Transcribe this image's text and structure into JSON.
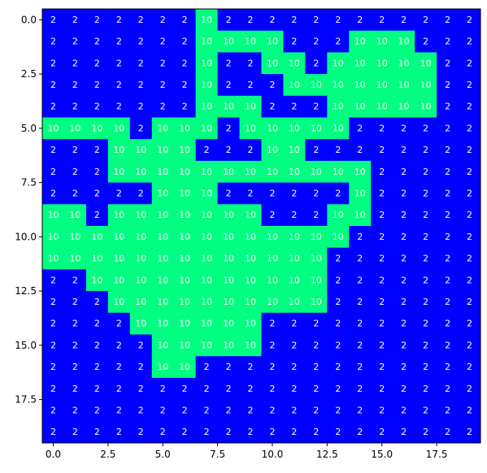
{
  "chart_data": {
    "type": "heatmap",
    "title": "",
    "xlabel": "",
    "ylabel": "",
    "xlim": [
      -0.5,
      19.5
    ],
    "ylim": [
      19.5,
      -0.5
    ],
    "x_ticks": [
      0.0,
      2.5,
      5.0,
      7.5,
      10.0,
      12.5,
      15.0,
      17.5
    ],
    "x_tick_labels": [
      "0.0",
      "2.5",
      "5.0",
      "7.5",
      "10.0",
      "12.5",
      "15.0",
      "17.5"
    ],
    "y_ticks": [
      0.0,
      2.5,
      5.0,
      7.5,
      10.0,
      12.5,
      15.0,
      17.5
    ],
    "y_tick_labels": [
      "0.0",
      "2.5",
      "5.0",
      "7.5",
      "10.0",
      "12.5",
      "15.0",
      "17.5"
    ],
    "grid": false,
    "colors": {
      "2": "#0000ff",
      "10": "#00ff80"
    },
    "annotation_color": "#ffffff",
    "values": [
      [
        2,
        2,
        2,
        2,
        2,
        2,
        2,
        10,
        2,
        2,
        2,
        2,
        2,
        2,
        2,
        2,
        2,
        2,
        2,
        2
      ],
      [
        2,
        2,
        2,
        2,
        2,
        2,
        2,
        10,
        10,
        10,
        10,
        2,
        2,
        2,
        10,
        10,
        10,
        2,
        2,
        2
      ],
      [
        2,
        2,
        2,
        2,
        2,
        2,
        2,
        10,
        2,
        2,
        10,
        10,
        2,
        10,
        10,
        10,
        10,
        10,
        2,
        2
      ],
      [
        2,
        2,
        2,
        2,
        2,
        2,
        2,
        10,
        2,
        2,
        2,
        10,
        10,
        10,
        10,
        10,
        10,
        10,
        2,
        2
      ],
      [
        2,
        2,
        2,
        2,
        2,
        2,
        2,
        10,
        10,
        10,
        2,
        2,
        2,
        10,
        10,
        10,
        10,
        10,
        2,
        2
      ],
      [
        10,
        10,
        10,
        10,
        2,
        10,
        10,
        10,
        2,
        10,
        10,
        10,
        10,
        10,
        2,
        2,
        2,
        2,
        2,
        2
      ],
      [
        2,
        2,
        2,
        10,
        10,
        10,
        10,
        2,
        2,
        2,
        10,
        10,
        2,
        2,
        2,
        2,
        2,
        2,
        2,
        2
      ],
      [
        2,
        2,
        2,
        10,
        10,
        10,
        10,
        10,
        10,
        10,
        10,
        10,
        10,
        10,
        10,
        2,
        2,
        2,
        2,
        2
      ],
      [
        2,
        2,
        2,
        2,
        2,
        10,
        10,
        10,
        2,
        2,
        2,
        2,
        2,
        2,
        10,
        2,
        2,
        2,
        2,
        2
      ],
      [
        10,
        10,
        2,
        10,
        10,
        10,
        10,
        10,
        10,
        10,
        2,
        2,
        2,
        10,
        10,
        2,
        2,
        2,
        2,
        2
      ],
      [
        10,
        10,
        10,
        10,
        10,
        10,
        10,
        10,
        10,
        10,
        10,
        10,
        10,
        10,
        2,
        2,
        2,
        2,
        2,
        2
      ],
      [
        10,
        10,
        10,
        10,
        10,
        10,
        10,
        10,
        10,
        10,
        10,
        10,
        10,
        2,
        2,
        2,
        2,
        2,
        2,
        2
      ],
      [
        2,
        2,
        10,
        10,
        10,
        10,
        10,
        10,
        10,
        10,
        10,
        10,
        10,
        2,
        2,
        2,
        2,
        2,
        2,
        2
      ],
      [
        2,
        2,
        2,
        10,
        10,
        10,
        10,
        10,
        10,
        10,
        10,
        10,
        10,
        2,
        2,
        2,
        2,
        2,
        2,
        2
      ],
      [
        2,
        2,
        2,
        2,
        10,
        10,
        10,
        10,
        10,
        10,
        2,
        2,
        2,
        2,
        2,
        2,
        2,
        2,
        2,
        2
      ],
      [
        2,
        2,
        2,
        2,
        2,
        10,
        10,
        10,
        10,
        10,
        2,
        2,
        2,
        2,
        2,
        2,
        2,
        2,
        2,
        2
      ],
      [
        2,
        2,
        2,
        2,
        2,
        10,
        10,
        2,
        2,
        2,
        2,
        2,
        2,
        2,
        2,
        2,
        2,
        2,
        2,
        2
      ],
      [
        2,
        2,
        2,
        2,
        2,
        2,
        2,
        2,
        2,
        2,
        2,
        2,
        2,
        2,
        2,
        2,
        2,
        2,
        2,
        2
      ],
      [
        2,
        2,
        2,
        2,
        2,
        2,
        2,
        2,
        2,
        2,
        2,
        2,
        2,
        2,
        2,
        2,
        2,
        2,
        2,
        2
      ],
      [
        2,
        2,
        2,
        2,
        2,
        2,
        2,
        2,
        2,
        2,
        2,
        2,
        2,
        2,
        2,
        2,
        2,
        2,
        2,
        2
      ]
    ]
  }
}
